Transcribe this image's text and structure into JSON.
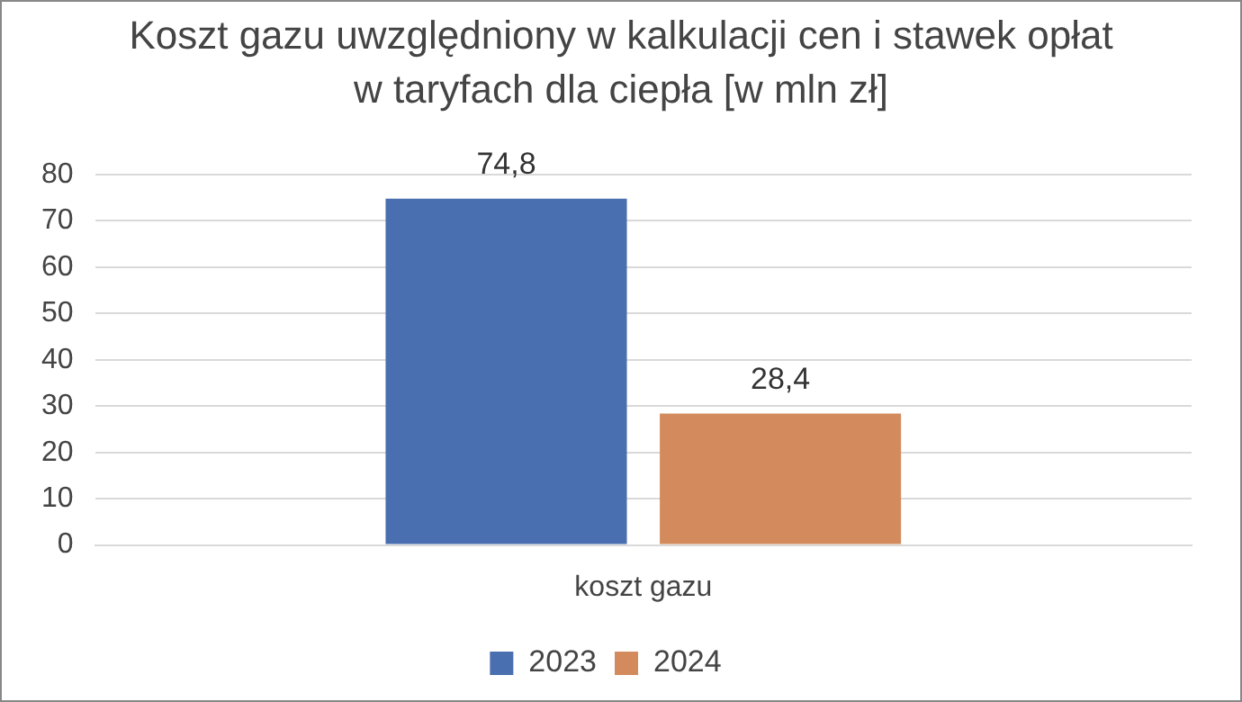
{
  "chart_data": {
    "type": "bar",
    "title": "Koszt gazu uwzględniony w kalkulacji cen i stawek opłat w taryfach dla ciepła [w mln zł]",
    "categories": [
      "koszt gazu"
    ],
    "series": [
      {
        "name": "2023",
        "color": "#4a6fb0",
        "values": [
          74.8
        ],
        "value_labels": [
          "74,8"
        ]
      },
      {
        "name": "2024",
        "color": "#d38b5d",
        "values": [
          28.4
        ],
        "value_labels": [
          "28,4"
        ]
      }
    ],
    "ylim": [
      0,
      80
    ],
    "yticks": [
      0,
      10,
      20,
      30,
      40,
      50,
      60,
      70,
      80
    ],
    "grid": "y",
    "legend": "bottom"
  }
}
